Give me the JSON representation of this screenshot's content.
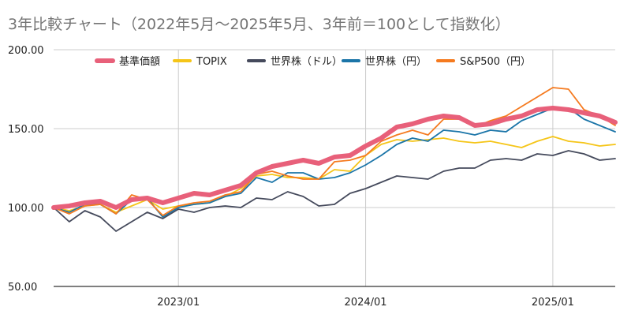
{
  "chart_data": {
    "type": "line",
    "title": "3年比較チャート（2022年5月〜2025年5月、3年前＝100として指数化）",
    "xlabel": "",
    "ylabel": "",
    "ylim": [
      50,
      200
    ],
    "y_ticks": [
      "50.00",
      "100.00",
      "150.00",
      "200.00"
    ],
    "x_ticks": [
      {
        "label": "2023/01",
        "date": "2023-01"
      },
      {
        "label": "2024/01",
        "date": "2024-01"
      },
      {
        "label": "2025/01",
        "date": "2025-01"
      }
    ],
    "x": [
      "2022-05",
      "2022-06",
      "2022-07",
      "2022-08",
      "2022-09",
      "2022-10",
      "2022-11",
      "2022-12",
      "2023-01",
      "2023-02",
      "2023-03",
      "2023-04",
      "2023-05",
      "2023-06",
      "2023-07",
      "2023-08",
      "2023-09",
      "2023-10",
      "2023-11",
      "2023-12",
      "2024-01",
      "2024-02",
      "2024-03",
      "2024-04",
      "2024-05",
      "2024-06",
      "2024-07",
      "2024-08",
      "2024-09",
      "2024-10",
      "2024-11",
      "2024-12",
      "2025-01",
      "2025-02",
      "2025-03",
      "2025-04",
      "2025-05"
    ],
    "legend_position": "top",
    "grid": true,
    "series": [
      {
        "name": "基準価額",
        "color": "#e8607a",
        "values": [
          100,
          101,
          103,
          104,
          100,
          105,
          106,
          103,
          106,
          109,
          108,
          111,
          114,
          122,
          126,
          128,
          130,
          128,
          132,
          133,
          139,
          144,
          151,
          153,
          156,
          158,
          157,
          152,
          153,
          156,
          158,
          162,
          163,
          162,
          160,
          158,
          154
        ]
      },
      {
        "name": "TOPIX",
        "color": "#f5c518",
        "values": [
          100,
          98,
          101,
          102,
          97,
          101,
          105,
          99,
          101,
          102,
          103,
          107,
          112,
          120,
          121,
          119,
          119,
          118,
          124,
          123,
          133,
          140,
          143,
          142,
          143,
          144,
          142,
          141,
          142,
          140,
          138,
          142,
          145,
          142,
          141,
          139,
          140
        ]
      },
      {
        "name": "世界株（ドル）",
        "color": "#454a5c",
        "values": [
          100,
          91,
          98,
          94,
          85,
          91,
          97,
          93,
          99,
          97,
          100,
          101,
          100,
          106,
          105,
          110,
          107,
          101,
          102,
          109,
          112,
          116,
          120,
          119,
          118,
          123,
          125,
          125,
          130,
          131,
          130,
          134,
          133,
          136,
          134,
          130,
          131
        ]
      },
      {
        "name": "世界株（円）",
        "color": "#1b75a8",
        "values": [
          100,
          97,
          102,
          102,
          96,
          105,
          106,
          94,
          100,
          102,
          103,
          107,
          109,
          119,
          116,
          122,
          122,
          118,
          119,
          122,
          127,
          133,
          140,
          144,
          142,
          149,
          148,
          146,
          149,
          148,
          155,
          159,
          163,
          163,
          156,
          152,
          148
        ]
      },
      {
        "name": "S&P500（円）",
        "color": "#f57a1f",
        "values": [
          100,
          96,
          101,
          102,
          96,
          108,
          105,
          95,
          101,
          103,
          104,
          108,
          110,
          121,
          123,
          120,
          118,
          118,
          129,
          130,
          133,
          142,
          146,
          149,
          146,
          156,
          156,
          151,
          155,
          158,
          164,
          170,
          176,
          175,
          162,
          158,
          152
        ]
      }
    ]
  }
}
